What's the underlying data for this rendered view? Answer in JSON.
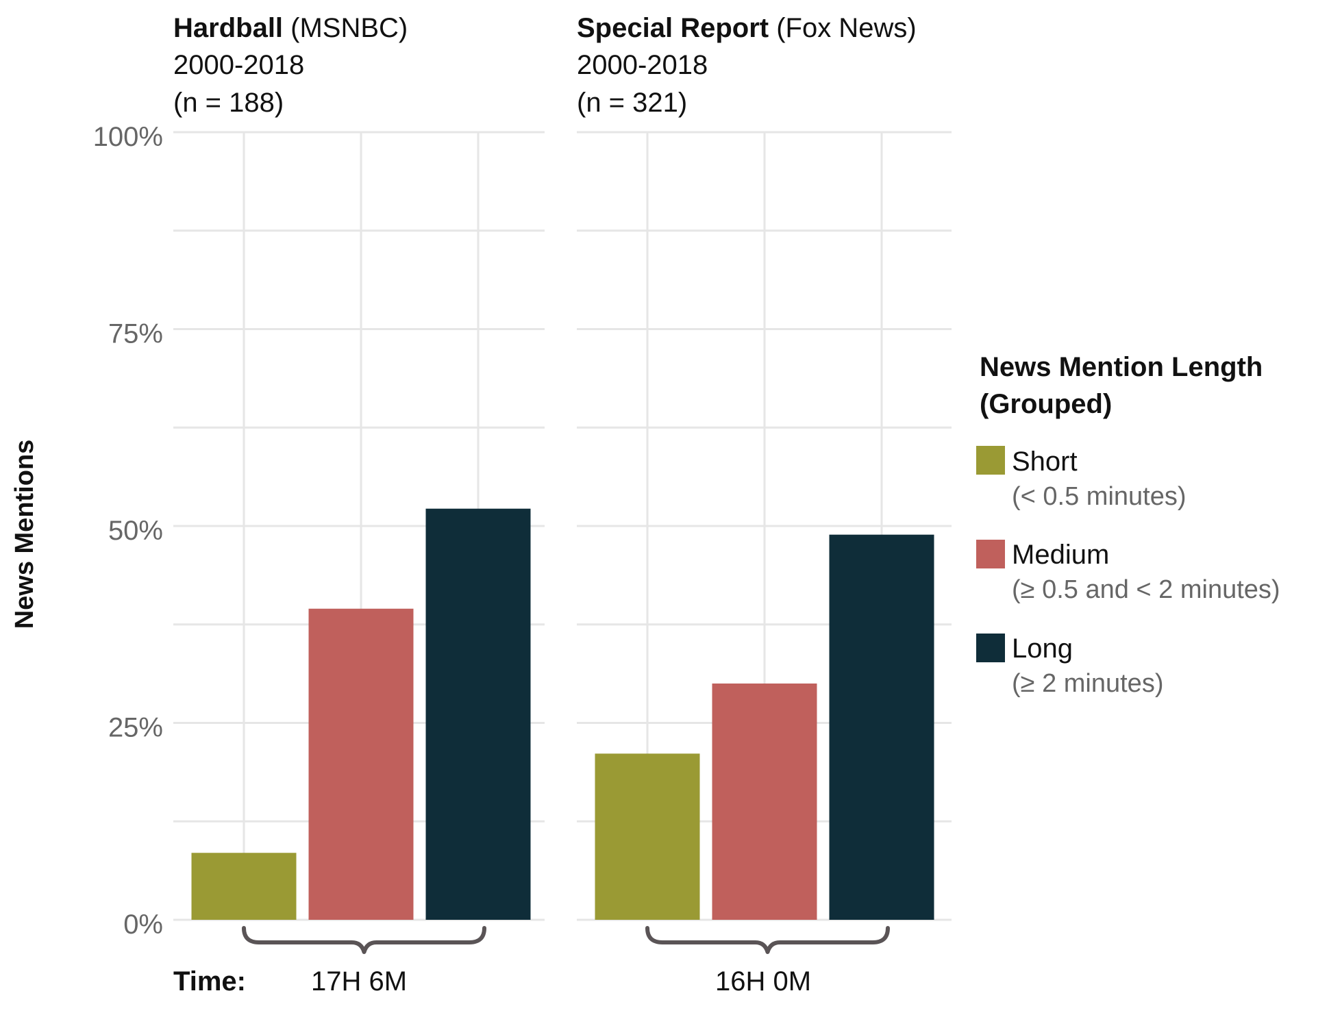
{
  "chart_data": {
    "type": "bar",
    "ylabel": "News Mentions",
    "ylim": [
      0,
      100
    ],
    "yticks": [
      "0%",
      "25%",
      "50%",
      "75%",
      "100%"
    ],
    "grid": true,
    "legend": {
      "title_line1": "News Mention Length",
      "title_line2": "(Grouped)",
      "placement": "right",
      "items": [
        {
          "label": "Short",
          "sub": "(< 0.5 minutes)",
          "color": "#9a9a34"
        },
        {
          "label": "Medium",
          "sub": "(≥ 0.5 and < 2 minutes)",
          "color": "#c0605c"
        },
        {
          "label": "Long",
          "sub": "(≥ 2 minutes)",
          "color": "#0f2d39"
        }
      ]
    },
    "time_label": "Time:",
    "panels": [
      {
        "show_bold": "Hardball",
        "network": " (MSNBC)",
        "years": "2000-2018",
        "n": "(n = 188)",
        "time": "17H 6M",
        "series": [
          {
            "name": "Short",
            "value": 8.5
          },
          {
            "name": "Medium",
            "value": 39.5
          },
          {
            "name": "Long",
            "value": 52.2
          }
        ]
      },
      {
        "show_bold": "Special Report",
        "network": " (Fox News)",
        "years": "2000-2018",
        "n": "(n = 321)",
        "time": "16H 0M",
        "series": [
          {
            "name": "Short",
            "value": 21.1
          },
          {
            "name": "Medium",
            "value": 30.0
          },
          {
            "name": "Long",
            "value": 48.9
          }
        ]
      }
    ]
  }
}
